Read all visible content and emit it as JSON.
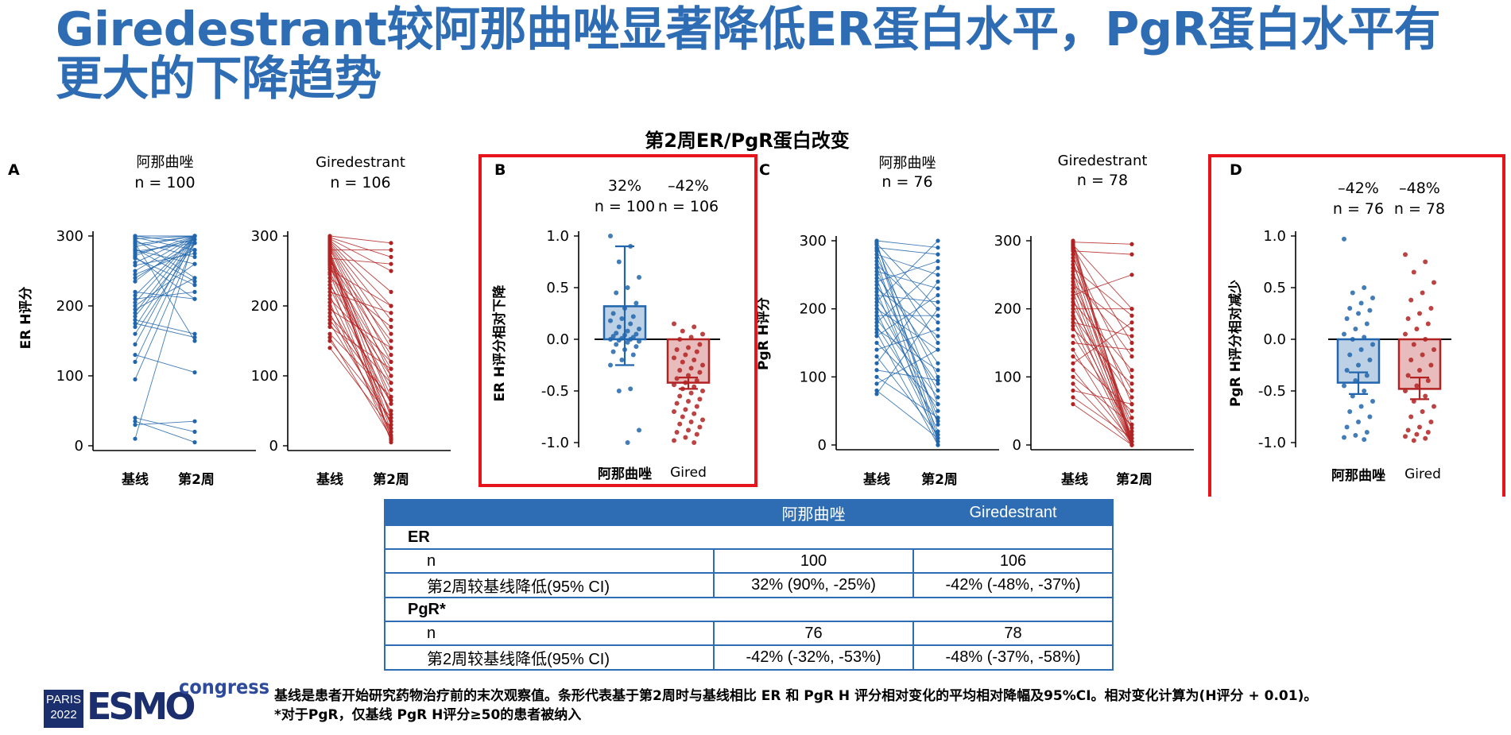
{
  "title": "Giredestrant较阿那曲唑显著降低ER蛋白水平，PgR蛋白水平有更大的下降趋势",
  "figure_title": "第2周ER/PgR蛋白改变",
  "colors": {
    "blue": "#2166ac",
    "red": "#b22222",
    "highlight": "#e8141b",
    "title": "#2e6db4"
  },
  "chart_data": [
    {
      "type": "line",
      "panel": "A",
      "subtitle_line1": "阿那曲唑",
      "subtitle_line2": "n = 100",
      "ylabel": "ER H评分",
      "categories": [
        "基线",
        "第2周"
      ],
      "ylim": [
        0,
        300
      ],
      "yticks": [
        0,
        100,
        200,
        300
      ],
      "series_color": "blue",
      "pairs": [
        [
          300,
          300
        ],
        [
          298,
          280
        ],
        [
          295,
          240
        ],
        [
          290,
          150
        ],
        [
          285,
          300
        ],
        [
          280,
          260
        ],
        [
          275,
          295
        ],
        [
          270,
          210
        ],
        [
          300,
          290
        ],
        [
          296,
          300
        ],
        [
          292,
          270
        ],
        [
          288,
          300
        ],
        [
          282,
          235
        ],
        [
          278,
          290
        ],
        [
          272,
          300
        ],
        [
          268,
          230
        ],
        [
          262,
          300
        ],
        [
          258,
          275
        ],
        [
          250,
          300
        ],
        [
          245,
          280
        ],
        [
          240,
          290
        ],
        [
          235,
          300
        ],
        [
          220,
          210
        ],
        [
          215,
          300
        ],
        [
          210,
          220
        ],
        [
          205,
          300
        ],
        [
          200,
          260
        ],
        [
          195,
          240
        ],
        [
          190,
          300
        ],
        [
          185,
          290
        ],
        [
          180,
          160
        ],
        [
          175,
          155
        ],
        [
          170,
          300
        ],
        [
          160,
          290
        ],
        [
          145,
          300
        ],
        [
          130,
          105
        ],
        [
          120,
          300
        ],
        [
          95,
          290
        ],
        [
          40,
          20
        ],
        [
          35,
          5
        ],
        [
          30,
          35
        ],
        [
          10,
          300
        ]
      ]
    },
    {
      "type": "line",
      "panel": "A2",
      "subtitle_line1": "Giredestrant",
      "subtitle_line2": "n = 106",
      "ylabel": "",
      "categories": [
        "基线",
        "第2周"
      ],
      "ylim": [
        0,
        300
      ],
      "yticks": [
        0,
        100,
        200,
        300
      ],
      "series_color": "red",
      "pairs": [
        [
          300,
          290
        ],
        [
          298,
          270
        ],
        [
          296,
          250
        ],
        [
          294,
          220
        ],
        [
          292,
          200
        ],
        [
          290,
          180
        ],
        [
          288,
          160
        ],
        [
          286,
          140
        ],
        [
          284,
          120
        ],
        [
          282,
          100
        ],
        [
          280,
          280
        ],
        [
          278,
          60
        ],
        [
          276,
          40
        ],
        [
          274,
          20
        ],
        [
          272,
          10
        ],
        [
          270,
          5
        ],
        [
          268,
          260
        ],
        [
          266,
          150
        ],
        [
          264,
          130
        ],
        [
          262,
          90
        ],
        [
          260,
          70
        ],
        [
          258,
          30
        ],
        [
          255,
          110
        ],
        [
          252,
          200
        ],
        [
          248,
          80
        ],
        [
          245,
          45
        ],
        [
          240,
          170
        ],
        [
          235,
          15
        ],
        [
          230,
          100
        ],
        [
          225,
          60
        ],
        [
          220,
          190
        ],
        [
          215,
          30
        ],
        [
          210,
          120
        ],
        [
          205,
          8
        ],
        [
          200,
          50
        ],
        [
          195,
          140
        ],
        [
          190,
          20
        ],
        [
          185,
          90
        ],
        [
          180,
          65
        ],
        [
          175,
          35
        ],
        [
          170,
          110
        ],
        [
          160,
          70
        ],
        [
          155,
          12
        ],
        [
          150,
          40
        ],
        [
          140,
          25
        ]
      ]
    },
    {
      "type": "bar_swarm",
      "panel": "B",
      "ylabel": "ER H评分相对下降",
      "ylim": [
        -1.0,
        1.0
      ],
      "yticks": [
        -1.0,
        -0.5,
        0.0,
        0.5,
        1.0
      ],
      "categories": [
        "阿那曲唑",
        "Gired"
      ],
      "group_labels": [
        "32%\nn = 100",
        "–42%\nn = 106"
      ],
      "series": [
        {
          "name": "阿那曲唑",
          "color": "blue",
          "mean": 0.32,
          "ci": [
            0.9,
            -0.25
          ],
          "points": [
            1.0,
            0.9,
            0.75,
            0.6,
            0.5,
            0.45,
            0.35,
            0.3,
            0.25,
            0.22,
            0.2,
            0.18,
            0.15,
            0.12,
            0.1,
            0.08,
            0.06,
            0.05,
            0.04,
            0.03,
            0.02,
            0.01,
            0.0,
            0.0,
            -0.01,
            -0.02,
            -0.03,
            -0.05,
            -0.07,
            -0.1,
            -0.12,
            -0.15,
            -0.2,
            -0.25,
            -0.48,
            -0.5,
            -0.88,
            -1.0
          ]
        },
        {
          "name": "Gired",
          "color": "red",
          "mean": -0.42,
          "ci": [
            -0.37,
            -0.48
          ],
          "points": [
            0.15,
            0.12,
            0.08,
            0.05,
            0.02,
            0.0,
            -0.05,
            -0.08,
            -0.1,
            -0.12,
            -0.15,
            -0.18,
            -0.2,
            -0.22,
            -0.25,
            -0.28,
            -0.3,
            -0.32,
            -0.35,
            -0.38,
            -0.4,
            -0.42,
            -0.44,
            -0.46,
            -0.48,
            -0.5,
            -0.52,
            -0.55,
            -0.58,
            -0.6,
            -0.62,
            -0.65,
            -0.68,
            -0.7,
            -0.72,
            -0.75,
            -0.78,
            -0.8,
            -0.82,
            -0.85,
            -0.88,
            -0.9,
            -0.92,
            -0.95,
            -0.98,
            -1.0
          ]
        }
      ]
    },
    {
      "type": "line",
      "panel": "C",
      "subtitle_line1": "阿那曲唑",
      "subtitle_line2": "n = 76",
      "ylabel": "PgR H评分",
      "categories": [
        "基线",
        "第2周"
      ],
      "ylim": [
        0,
        300
      ],
      "yticks": [
        0,
        100,
        200,
        300
      ],
      "series_color": "blue",
      "pairs": [
        [
          300,
          290
        ],
        [
          298,
          10
        ],
        [
          296,
          200
        ],
        [
          294,
          60
        ],
        [
          290,
          280
        ],
        [
          288,
          150
        ],
        [
          285,
          30
        ],
        [
          280,
          250
        ],
        [
          275,
          100
        ],
        [
          270,
          5
        ],
        [
          265,
          180
        ],
        [
          260,
          40
        ],
        [
          255,
          230
        ],
        [
          250,
          120
        ],
        [
          245,
          0
        ],
        [
          240,
          270
        ],
        [
          235,
          80
        ],
        [
          230,
          160
        ],
        [
          225,
          20
        ],
        [
          220,
          210
        ],
        [
          215,
          90
        ],
        [
          210,
          300
        ],
        [
          205,
          50
        ],
        [
          200,
          140
        ],
        [
          195,
          10
        ],
        [
          190,
          190
        ],
        [
          185,
          70
        ],
        [
          180,
          260
        ],
        [
          175,
          35
        ],
        [
          170,
          110
        ],
        [
          165,
          0
        ],
        [
          160,
          220
        ],
        [
          150,
          60
        ],
        [
          140,
          170
        ],
        [
          130,
          15
        ],
        [
          120,
          240
        ],
        [
          110,
          95
        ],
        [
          100,
          40
        ],
        [
          90,
          140
        ],
        [
          80,
          10
        ],
        [
          75,
          200
        ]
      ]
    },
    {
      "type": "line",
      "panel": "C2",
      "subtitle_line1": "Giredestrant",
      "subtitle_line2": "n = 78",
      "ylabel": "",
      "categories": [
        "基线",
        "第2周"
      ],
      "ylim": [
        0,
        300
      ],
      "yticks": [
        0,
        100,
        200,
        300
      ],
      "series_color": "red",
      "pairs": [
        [
          300,
          0
        ],
        [
          298,
          295
        ],
        [
          296,
          5
        ],
        [
          294,
          200
        ],
        [
          292,
          10
        ],
        [
          290,
          150
        ],
        [
          288,
          0
        ],
        [
          285,
          280
        ],
        [
          280,
          20
        ],
        [
          275,
          100
        ],
        [
          270,
          0
        ],
        [
          265,
          60
        ],
        [
          260,
          190
        ],
        [
          255,
          5
        ],
        [
          250,
          130
        ],
        [
          245,
          30
        ],
        [
          240,
          0
        ],
        [
          235,
          170
        ],
        [
          230,
          80
        ],
        [
          225,
          10
        ],
        [
          220,
          250
        ],
        [
          215,
          0
        ],
        [
          210,
          110
        ],
        [
          205,
          40
        ],
        [
          200,
          200
        ],
        [
          195,
          0
        ],
        [
          190,
          70
        ],
        [
          185,
          15
        ],
        [
          180,
          160
        ],
        [
          175,
          0
        ],
        [
          170,
          90
        ],
        [
          160,
          25
        ],
        [
          150,
          140
        ],
        [
          140,
          0
        ],
        [
          130,
          50
        ],
        [
          120,
          180
        ],
        [
          110,
          5
        ],
        [
          100,
          30
        ],
        [
          90,
          0
        ],
        [
          80,
          60
        ],
        [
          70,
          10
        ],
        [
          60,
          0
        ]
      ]
    },
    {
      "type": "bar_swarm",
      "panel": "D",
      "ylabel": "PgR H评分相对减少",
      "ylim": [
        -1.0,
        1.0
      ],
      "yticks": [
        -1.0,
        -0.5,
        0.0,
        0.5,
        1.0
      ],
      "categories": [
        "阿那曲唑",
        "Gired"
      ],
      "group_labels": [
        "–42%\nn = 76",
        "–48%\nn = 78"
      ],
      "series": [
        {
          "name": "阿那曲唑",
          "color": "blue",
          "mean": -0.42,
          "ci": [
            -0.32,
            -0.53
          ],
          "points": [
            0.97,
            0.5,
            0.45,
            0.4,
            0.35,
            0.3,
            0.28,
            0.25,
            0.2,
            0.15,
            0.1,
            0.05,
            0.02,
            0.0,
            -0.05,
            -0.1,
            -0.15,
            -0.2,
            -0.25,
            -0.3,
            -0.35,
            -0.4,
            -0.45,
            -0.5,
            -0.55,
            -0.6,
            -0.65,
            -0.7,
            -0.75,
            -0.8,
            -0.85,
            -0.9,
            -0.93,
            -0.95,
            -0.97
          ]
        },
        {
          "name": "Gired",
          "color": "red",
          "mean": -0.48,
          "ci": [
            -0.37,
            -0.58
          ],
          "points": [
            0.82,
            0.75,
            0.65,
            0.55,
            0.45,
            0.38,
            0.3,
            0.25,
            0.2,
            0.15,
            0.1,
            0.05,
            0.0,
            -0.05,
            -0.1,
            -0.15,
            -0.2,
            -0.25,
            -0.3,
            -0.35,
            -0.4,
            -0.45,
            -0.5,
            -0.55,
            -0.6,
            -0.65,
            -0.7,
            -0.75,
            -0.8,
            -0.85,
            -0.88,
            -0.9,
            -0.92,
            -0.94,
            -0.96,
            -0.98
          ]
        }
      ]
    }
  ],
  "table": {
    "header": [
      "",
      "阿那曲唑",
      "Giredestrant"
    ],
    "sections": [
      {
        "name": "ER",
        "rows": [
          [
            "n",
            "100",
            "106"
          ],
          [
            "第2周较基线降低(95% CI)",
            "32% (90%, -25%)",
            "-42% (-48%, -37%)"
          ]
        ]
      },
      {
        "name": "PgR*",
        "rows": [
          [
            "n",
            "76",
            "78"
          ],
          [
            "第2周较基线降低(95% CI)",
            "-42% (-32%, -53%)",
            "-48% (-37%, -58%)"
          ]
        ]
      }
    ]
  },
  "logo": {
    "city": "PARIS",
    "year": "2022",
    "brand": "ESMO",
    "word": "congress"
  },
  "footnote": {
    "line1": "基线是患者开始研究药物治疗前的末次观察值。条形代表基于第2周时与基线相比 ER 和 PgR H 评分相对变化的平均相对降幅及95%CI。相对变化计算为(H评分 + 0.01)。",
    "line2": "*对于PgR，仅基线 PgR H评分≥50的患者被纳入"
  }
}
